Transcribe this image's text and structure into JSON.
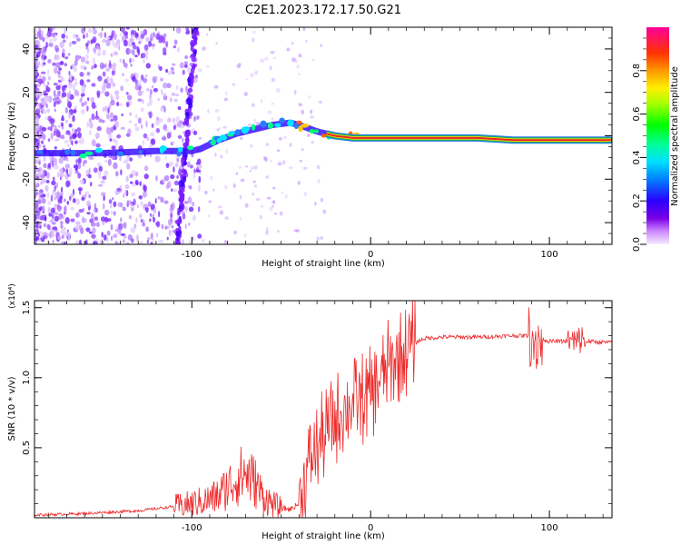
{
  "title": "C2E1.2023.172.17.50.G21",
  "colors": {
    "snr_line": "#ee2a2a",
    "ridge": "#22aa55",
    "core": "#e8222a"
  },
  "chart_data": [
    {
      "type": "heatmap",
      "title": "C2E1.2023.172.17.50.G21",
      "xlabel": "Height of straight line (km)",
      "ylabel": "Frequency (Hz)",
      "xlim": [
        -188,
        135
      ],
      "ylim": [
        -50,
        50
      ],
      "x_ticks": [
        -100,
        0,
        100
      ],
      "x_tick_labels": [
        "-100",
        "0",
        "100"
      ],
      "y_ticks": [
        -40,
        -20,
        0,
        20,
        40
      ],
      "y_tick_labels": [
        "-40",
        "-20",
        "0",
        "20",
        "40"
      ],
      "colorbar": {
        "label": "Normalized spectral amplitude",
        "range": [
          0,
          1
        ],
        "ticks": [
          0.0,
          0.2,
          0.4,
          0.6,
          0.8
        ],
        "tick_labels": [
          "0.0",
          "0.2",
          "0.4",
          "0.6",
          "0.8"
        ]
      },
      "ridge": {
        "x": [
          -188,
          -150,
          -120,
          -100,
          -95,
          -85,
          -75,
          -65,
          -55,
          -45,
          -40,
          -30,
          -20,
          -10,
          0,
          20,
          40,
          60,
          80,
          100,
          135
        ],
        "y": [
          -8,
          -8,
          -7,
          -7,
          -6,
          -2,
          1,
          3,
          5,
          6,
          5,
          2,
          0,
          -1,
          -1,
          -1,
          -1,
          -1,
          -2,
          -2,
          -2
        ]
      },
      "grid": false
    },
    {
      "type": "line",
      "xlabel": "Height of straight line (km)",
      "ylabel": "SNR (10 * v/v)",
      "y_multiplier_label": "(x10⁴)",
      "xlim": [
        -188,
        135
      ],
      "ylim": [
        0,
        1.55
      ],
      "x_ticks": [
        -100,
        0,
        100
      ],
      "x_tick_labels": [
        "-100",
        "0",
        "100"
      ],
      "y_ticks": [
        0.5,
        1.0,
        1.5
      ],
      "y_tick_labels": [
        "0.5",
        "1.0",
        "1.5"
      ],
      "series": [
        {
          "x": [
            -188,
            -160,
            -130,
            -110,
            -100,
            -90,
            -85,
            -80,
            -75,
            -70,
            -65,
            -60,
            -55,
            -50,
            -45,
            -40,
            -35,
            -30,
            -25,
            -20,
            -15,
            -10,
            -5,
            0,
            5,
            10,
            15,
            20,
            25,
            30,
            40,
            60,
            80,
            90,
            92,
            95,
            100,
            110,
            115,
            118,
            120,
            135
          ],
          "y": [
            0.02,
            0.03,
            0.05,
            0.08,
            0.1,
            0.13,
            0.16,
            0.22,
            0.28,
            0.32,
            0.26,
            0.15,
            0.1,
            0.07,
            0.06,
            0.1,
            0.38,
            0.5,
            0.6,
            0.7,
            0.78,
            0.82,
            0.85,
            0.88,
            0.98,
            1.08,
            1.15,
            1.2,
            1.25,
            1.28,
            1.29,
            1.29,
            1.3,
            1.3,
            1.25,
            1.28,
            1.26,
            1.26,
            1.25,
            1.28,
            1.26,
            1.25
          ]
        }
      ],
      "grid": false
    }
  ]
}
